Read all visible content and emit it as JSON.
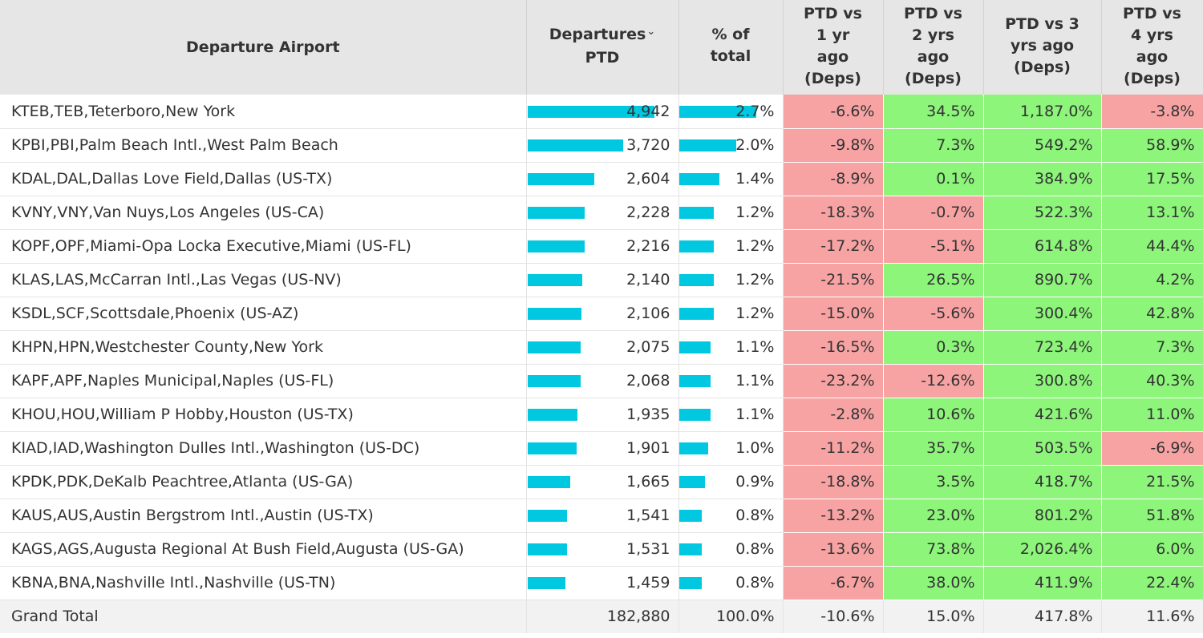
{
  "headers": {
    "airport": "Departure Airport",
    "deps_line1": "Departures",
    "deps_line2": "PTD",
    "sort_icon": "chevron-down",
    "pct_line1": "% of",
    "pct_line2": "total",
    "v1": [
      "PTD vs",
      "1 yr",
      "ago",
      "(Deps)"
    ],
    "v2": [
      "PTD vs",
      "2 yrs",
      "ago",
      "(Deps)"
    ],
    "v3": [
      "PTD vs 3",
      "yrs ago",
      "(Deps)"
    ],
    "v4": [
      "PTD vs",
      "4 yrs",
      "ago",
      "(Deps)"
    ]
  },
  "colors": {
    "bar": "#00c8e0",
    "negative": "#f8a3a3",
    "positive": "#8cf57a",
    "header_bg": "#e6e6e6"
  },
  "rows": [
    {
      "airport": "KTEB,TEB,Teterboro,New York",
      "deps": "4,942",
      "deps_value": 4942,
      "pct": "2.7%",
      "pct_value": 2.7,
      "v1": "-6.6%",
      "v2": "34.5%",
      "v3": "1,187.0%",
      "v4": "-3.8%"
    },
    {
      "airport": "KPBI,PBI,Palm Beach Intl.,West Palm Beach",
      "deps": "3,720",
      "deps_value": 3720,
      "pct": "2.0%",
      "pct_value": 2.0,
      "v1": "-9.8%",
      "v2": "7.3%",
      "v3": "549.2%",
      "v4": "58.9%"
    },
    {
      "airport": "KDAL,DAL,Dallas Love Field,Dallas (US-TX)",
      "deps": "2,604",
      "deps_value": 2604,
      "pct": "1.4%",
      "pct_value": 1.4,
      "v1": "-8.9%",
      "v2": "0.1%",
      "v3": "384.9%",
      "v4": "17.5%"
    },
    {
      "airport": "KVNY,VNY,Van Nuys,Los Angeles (US-CA)",
      "deps": "2,228",
      "deps_value": 2228,
      "pct": "1.2%",
      "pct_value": 1.2,
      "v1": "-18.3%",
      "v2": "-0.7%",
      "v3": "522.3%",
      "v4": "13.1%"
    },
    {
      "airport": "KOPF,OPF,Miami-Opa Locka Executive,Miami (US-FL)",
      "deps": "2,216",
      "deps_value": 2216,
      "pct": "1.2%",
      "pct_value": 1.2,
      "v1": "-17.2%",
      "v2": "-5.1%",
      "v3": "614.8%",
      "v4": "44.4%"
    },
    {
      "airport": "KLAS,LAS,McCarran Intl.,Las Vegas (US-NV)",
      "deps": "2,140",
      "deps_value": 2140,
      "pct": "1.2%",
      "pct_value": 1.2,
      "v1": "-21.5%",
      "v2": "26.5%",
      "v3": "890.7%",
      "v4": "4.2%"
    },
    {
      "airport": "KSDL,SCF,Scottsdale,Phoenix (US-AZ)",
      "deps": "2,106",
      "deps_value": 2106,
      "pct": "1.2%",
      "pct_value": 1.2,
      "v1": "-15.0%",
      "v2": "-5.6%",
      "v3": "300.4%",
      "v4": "42.8%"
    },
    {
      "airport": "KHPN,HPN,Westchester County,New York",
      "deps": "2,075",
      "deps_value": 2075,
      "pct": "1.1%",
      "pct_value": 1.1,
      "v1": "-16.5%",
      "v2": "0.3%",
      "v3": "723.4%",
      "v4": "7.3%"
    },
    {
      "airport": "KAPF,APF,Naples Municipal,Naples (US-FL)",
      "deps": "2,068",
      "deps_value": 2068,
      "pct": "1.1%",
      "pct_value": 1.1,
      "v1": "-23.2%",
      "v2": "-12.6%",
      "v3": "300.8%",
      "v4": "40.3%"
    },
    {
      "airport": "KHOU,HOU,William P Hobby,Houston (US-TX)",
      "deps": "1,935",
      "deps_value": 1935,
      "pct": "1.1%",
      "pct_value": 1.1,
      "v1": "-2.8%",
      "v2": "10.6%",
      "v3": "421.6%",
      "v4": "11.0%"
    },
    {
      "airport": "KIAD,IAD,Washington Dulles Intl.,Washington (US-DC)",
      "deps": "1,901",
      "deps_value": 1901,
      "pct": "1.0%",
      "pct_value": 1.0,
      "v1": "-11.2%",
      "v2": "35.7%",
      "v3": "503.5%",
      "v4": "-6.9%"
    },
    {
      "airport": "KPDK,PDK,DeKalb Peachtree,Atlanta (US-GA)",
      "deps": "1,665",
      "deps_value": 1665,
      "pct": "0.9%",
      "pct_value": 0.9,
      "v1": "-18.8%",
      "v2": "3.5%",
      "v3": "418.7%",
      "v4": "21.5%"
    },
    {
      "airport": "KAUS,AUS,Austin Bergstrom Intl.,Austin (US-TX)",
      "deps": "1,541",
      "deps_value": 1541,
      "pct": "0.8%",
      "pct_value": 0.8,
      "v1": "-13.2%",
      "v2": "23.0%",
      "v3": "801.2%",
      "v4": "51.8%"
    },
    {
      "airport": "KAGS,AGS,Augusta Regional At Bush Field,Augusta (US-GA)",
      "deps": "1,531",
      "deps_value": 1531,
      "pct": "0.8%",
      "pct_value": 0.8,
      "v1": "-13.6%",
      "v2": "73.8%",
      "v3": "2,026.4%",
      "v4": "6.0%"
    },
    {
      "airport": "KBNA,BNA,Nashville Intl.,Nashville (US-TN)",
      "deps": "1,459",
      "deps_value": 1459,
      "pct": "0.8%",
      "pct_value": 0.8,
      "v1": "-6.7%",
      "v2": "38.0%",
      "v3": "411.9%",
      "v4": "22.4%"
    }
  ],
  "total": {
    "label": "Grand Total",
    "deps": "182,880",
    "pct": "100.0%",
    "v1": "-10.6%",
    "v2": "15.0%",
    "v3": "417.8%",
    "v4": "11.6%"
  }
}
